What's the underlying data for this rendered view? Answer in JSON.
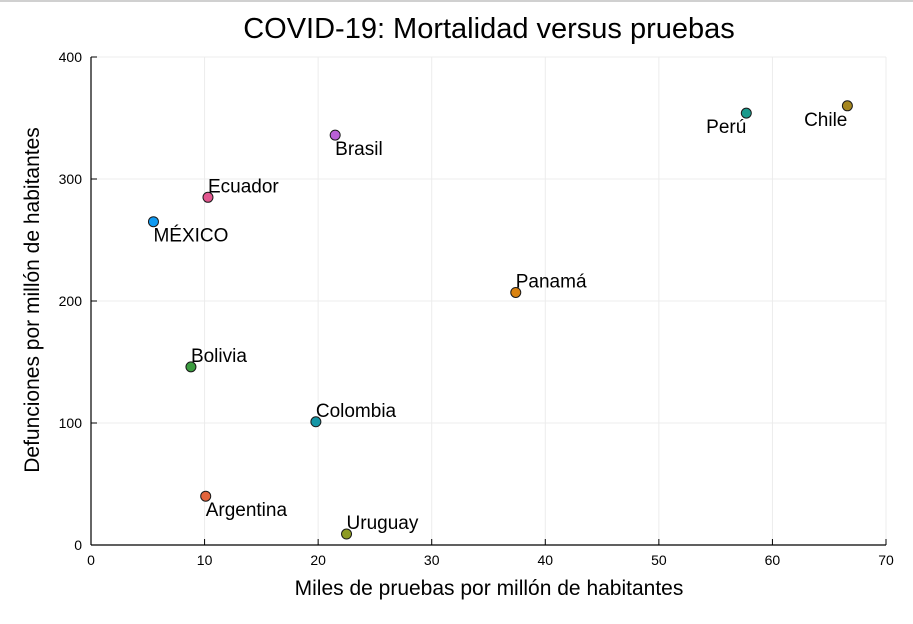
{
  "chart_data": {
    "type": "scatter",
    "title": "COVID-19: Mortalidad versus pruebas",
    "xlabel": "Miles de pruebas por millón de habitantes",
    "ylabel": "Defunciones por millón de habitantes",
    "xlim": [
      0,
      70
    ],
    "ylim": [
      0,
      400
    ],
    "xticks": [
      0,
      10,
      20,
      30,
      40,
      50,
      60,
      70
    ],
    "yticks": [
      0,
      100,
      200,
      300,
      400
    ],
    "grid": true,
    "legend": "none",
    "points": [
      {
        "label": "MÉXICO",
        "x": 5.5,
        "y": 265,
        "color": "#0f9af2",
        "label_color": "#e8101a",
        "label_pos": "below-right"
      },
      {
        "label": "Ecuador",
        "x": 10.3,
        "y": 285,
        "color": "#e2578f",
        "label_color": "#000000",
        "label_pos": "above-right"
      },
      {
        "label": "Brasil",
        "x": 21.5,
        "y": 336,
        "color": "#b960d6",
        "label_color": "#000000",
        "label_pos": "below-right"
      },
      {
        "label": "Perú",
        "x": 57.7,
        "y": 354,
        "color": "#1a9a8c",
        "label_color": "#000000",
        "label_pos": "below-left"
      },
      {
        "label": "Chile",
        "x": 66.6,
        "y": 360,
        "color": "#a5861f",
        "label_color": "#000000",
        "label_pos": "below-left"
      },
      {
        "label": "Panamá",
        "x": 37.4,
        "y": 207,
        "color": "#d9820f",
        "label_color": "#000000",
        "label_pos": "above-right"
      },
      {
        "label": "Bolivia",
        "x": 8.8,
        "y": 146,
        "color": "#3b9c3f",
        "label_color": "#000000",
        "label_pos": "above-right"
      },
      {
        "label": "Colombia",
        "x": 19.8,
        "y": 101,
        "color": "#1596a6",
        "label_color": "#000000",
        "label_pos": "above-right"
      },
      {
        "label": "Argentina",
        "x": 10.1,
        "y": 40,
        "color": "#e2643c",
        "label_color": "#000000",
        "label_pos": "below-right"
      },
      {
        "label": "Uruguay",
        "x": 22.5,
        "y": 9,
        "color": "#8d9b23",
        "label_color": "#000000",
        "label_pos": "above-right"
      }
    ]
  }
}
